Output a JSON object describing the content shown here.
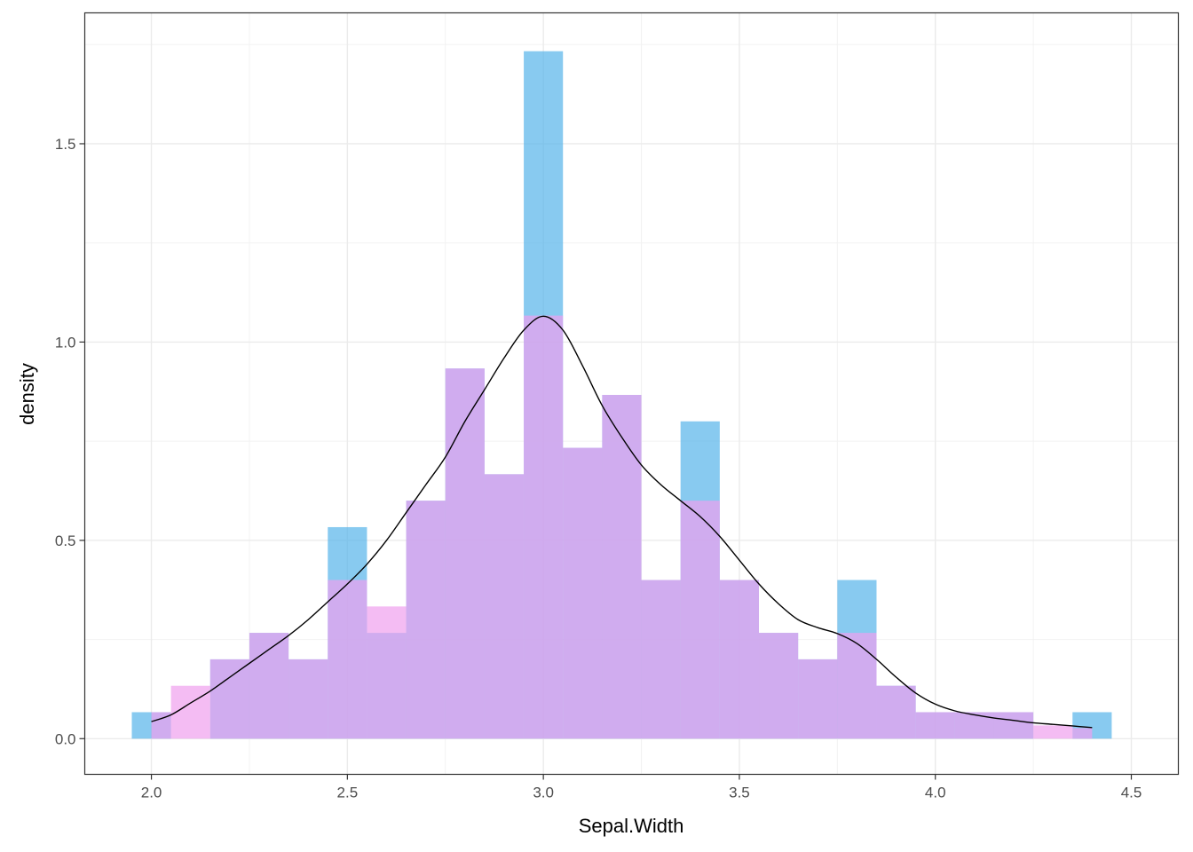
{
  "chart_data": {
    "type": "bar",
    "title": "",
    "xlabel": "Sepal.Width",
    "ylabel": "density",
    "xlim": [
      1.83,
      4.62
    ],
    "ylim": [
      -0.09,
      1.83
    ],
    "x_ticks": [
      2.0,
      2.5,
      3.0,
      3.5,
      4.0,
      4.5
    ],
    "x_tick_labels": [
      "2.0",
      "2.5",
      "3.0",
      "3.5",
      "4.0",
      "4.5"
    ],
    "y_ticks": [
      0.0,
      0.5,
      1.0,
      1.5
    ],
    "y_tick_labels": [
      "0.0",
      "0.5",
      "1.0",
      "1.5"
    ],
    "grid": true,
    "theme": "bw",
    "series": [
      {
        "kind": "histogram",
        "fill": "#56B4E9",
        "opacity": 0.7,
        "bins": [
          {
            "x0": 1.95,
            "x1": 2.05,
            "y": 0.0667
          },
          {
            "x0": 2.05,
            "x1": 2.15,
            "y": 0.0
          },
          {
            "x0": 2.15,
            "x1": 2.25,
            "y": 0.2
          },
          {
            "x0": 2.25,
            "x1": 2.35,
            "y": 0.2667
          },
          {
            "x0": 2.35,
            "x1": 2.45,
            "y": 0.2
          },
          {
            "x0": 2.45,
            "x1": 2.55,
            "y": 0.5333
          },
          {
            "x0": 2.55,
            "x1": 2.65,
            "y": 0.2667
          },
          {
            "x0": 2.65,
            "x1": 2.75,
            "y": 0.6
          },
          {
            "x0": 2.75,
            "x1": 2.85,
            "y": 0.9333
          },
          {
            "x0": 2.85,
            "x1": 2.95,
            "y": 0.6667
          },
          {
            "x0": 2.95,
            "x1": 3.05,
            "y": 1.7333
          },
          {
            "x0": 3.05,
            "x1": 3.15,
            "y": 0.7333
          },
          {
            "x0": 3.15,
            "x1": 3.25,
            "y": 0.8667
          },
          {
            "x0": 3.25,
            "x1": 3.35,
            "y": 0.4
          },
          {
            "x0": 3.35,
            "x1": 3.45,
            "y": 0.8
          },
          {
            "x0": 3.45,
            "x1": 3.55,
            "y": 0.4
          },
          {
            "x0": 3.55,
            "x1": 3.65,
            "y": 0.2667
          },
          {
            "x0": 3.65,
            "x1": 3.75,
            "y": 0.2
          },
          {
            "x0": 3.75,
            "x1": 3.85,
            "y": 0.4
          },
          {
            "x0": 3.85,
            "x1": 3.95,
            "y": 0.1333
          },
          {
            "x0": 3.95,
            "x1": 4.05,
            "y": 0.0667
          },
          {
            "x0": 4.05,
            "x1": 4.15,
            "y": 0.0667
          },
          {
            "x0": 4.15,
            "x1": 4.25,
            "y": 0.0667
          },
          {
            "x0": 4.25,
            "x1": 4.35,
            "y": 0.0
          },
          {
            "x0": 4.35,
            "x1": 4.45,
            "y": 0.0667
          }
        ]
      },
      {
        "kind": "histogram",
        "fill": "#F0A0EE",
        "opacity": 0.7,
        "bins": [
          {
            "x0": 2.0,
            "x1": 2.05,
            "y": 0.0667
          },
          {
            "x0": 2.05,
            "x1": 2.15,
            "y": 0.1333
          },
          {
            "x0": 2.15,
            "x1": 2.25,
            "y": 0.2
          },
          {
            "x0": 2.25,
            "x1": 2.35,
            "y": 0.2667
          },
          {
            "x0": 2.35,
            "x1": 2.45,
            "y": 0.2
          },
          {
            "x0": 2.45,
            "x1": 2.55,
            "y": 0.4
          },
          {
            "x0": 2.55,
            "x1": 2.65,
            "y": 0.3333
          },
          {
            "x0": 2.65,
            "x1": 2.75,
            "y": 0.6
          },
          {
            "x0": 2.75,
            "x1": 2.85,
            "y": 0.9333
          },
          {
            "x0": 2.85,
            "x1": 2.95,
            "y": 0.6667
          },
          {
            "x0": 2.95,
            "x1": 3.05,
            "y": 1.0667
          },
          {
            "x0": 3.05,
            "x1": 3.15,
            "y": 0.7333
          },
          {
            "x0": 3.15,
            "x1": 3.25,
            "y": 0.8667
          },
          {
            "x0": 3.25,
            "x1": 3.35,
            "y": 0.4
          },
          {
            "x0": 3.35,
            "x1": 3.45,
            "y": 0.6
          },
          {
            "x0": 3.45,
            "x1": 3.55,
            "y": 0.4
          },
          {
            "x0": 3.55,
            "x1": 3.65,
            "y": 0.2667
          },
          {
            "x0": 3.65,
            "x1": 3.75,
            "y": 0.2
          },
          {
            "x0": 3.75,
            "x1": 3.85,
            "y": 0.2667
          },
          {
            "x0": 3.85,
            "x1": 3.95,
            "y": 0.1333
          },
          {
            "x0": 3.95,
            "x1": 4.05,
            "y": 0.0667
          },
          {
            "x0": 4.05,
            "x1": 4.15,
            "y": 0.0667
          },
          {
            "x0": 4.15,
            "x1": 4.25,
            "y": 0.0667
          },
          {
            "x0": 4.25,
            "x1": 4.35,
            "y": 0.0333
          },
          {
            "x0": 4.35,
            "x1": 4.4,
            "y": 0.0267
          }
        ]
      },
      {
        "kind": "density",
        "stroke": "#000000",
        "points": [
          {
            "x": 2.0,
            "y": 0.043
          },
          {
            "x": 2.05,
            "y": 0.06
          },
          {
            "x": 2.1,
            "y": 0.09
          },
          {
            "x": 2.15,
            "y": 0.12
          },
          {
            "x": 2.2,
            "y": 0.155
          },
          {
            "x": 2.25,
            "y": 0.19
          },
          {
            "x": 2.3,
            "y": 0.225
          },
          {
            "x": 2.35,
            "y": 0.26
          },
          {
            "x": 2.4,
            "y": 0.3
          },
          {
            "x": 2.45,
            "y": 0.345
          },
          {
            "x": 2.5,
            "y": 0.39
          },
          {
            "x": 2.55,
            "y": 0.44
          },
          {
            "x": 2.6,
            "y": 0.5
          },
          {
            "x": 2.65,
            "y": 0.57
          },
          {
            "x": 2.7,
            "y": 0.64
          },
          {
            "x": 2.75,
            "y": 0.71
          },
          {
            "x": 2.8,
            "y": 0.8
          },
          {
            "x": 2.85,
            "y": 0.88
          },
          {
            "x": 2.9,
            "y": 0.96
          },
          {
            "x": 2.95,
            "y": 1.03
          },
          {
            "x": 3.0,
            "y": 1.065
          },
          {
            "x": 3.05,
            "y": 1.03
          },
          {
            "x": 3.1,
            "y": 0.94
          },
          {
            "x": 3.15,
            "y": 0.84
          },
          {
            "x": 3.2,
            "y": 0.76
          },
          {
            "x": 3.25,
            "y": 0.69
          },
          {
            "x": 3.3,
            "y": 0.64
          },
          {
            "x": 3.35,
            "y": 0.6
          },
          {
            "x": 3.4,
            "y": 0.56
          },
          {
            "x": 3.45,
            "y": 0.51
          },
          {
            "x": 3.5,
            "y": 0.45
          },
          {
            "x": 3.55,
            "y": 0.39
          },
          {
            "x": 3.6,
            "y": 0.34
          },
          {
            "x": 3.65,
            "y": 0.3
          },
          {
            "x": 3.7,
            "y": 0.28
          },
          {
            "x": 3.75,
            "y": 0.265
          },
          {
            "x": 3.8,
            "y": 0.24
          },
          {
            "x": 3.85,
            "y": 0.2
          },
          {
            "x": 3.9,
            "y": 0.155
          },
          {
            "x": 3.95,
            "y": 0.115
          },
          {
            "x": 4.0,
            "y": 0.087
          },
          {
            "x": 4.05,
            "y": 0.07
          },
          {
            "x": 4.1,
            "y": 0.06
          },
          {
            "x": 4.15,
            "y": 0.052
          },
          {
            "x": 4.2,
            "y": 0.046
          },
          {
            "x": 4.25,
            "y": 0.04
          },
          {
            "x": 4.3,
            "y": 0.036
          },
          {
            "x": 4.35,
            "y": 0.032
          },
          {
            "x": 4.4,
            "y": 0.028
          }
        ]
      }
    ]
  }
}
